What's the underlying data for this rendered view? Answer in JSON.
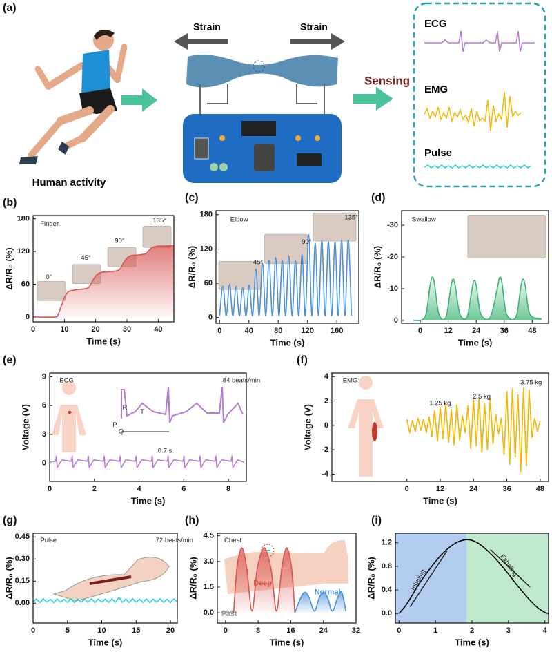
{
  "schematic": {
    "panel_label": "(a)",
    "strain_left": "Strain",
    "strain_right": "Strain",
    "sensing": "Sensing",
    "signals": [
      "ECG",
      "EMG",
      "Pulse"
    ],
    "caption": "Human activity"
  },
  "chart_data": [
    {
      "type": "line",
      "panel_label": "(b)",
      "x_label": "Time (s)",
      "y_label": "ΔR/R₀ (%)",
      "xlim": [
        0,
        45
      ],
      "xticks": [
        0,
        10,
        20,
        30,
        40
      ],
      "ylim": [
        -9,
        186
      ],
      "yticks": [
        0,
        60,
        120,
        180
      ],
      "annotations": [
        "Finger",
        "0°",
        "45°",
        "90°",
        "135°"
      ],
      "series": [
        {
          "color": "#d9534f",
          "area": true,
          "smooth": true,
          "x": [
            0,
            7,
            8,
            9,
            10,
            11,
            12,
            14,
            17,
            18,
            19,
            20,
            21,
            22,
            24,
            27,
            28,
            29,
            30,
            31,
            32,
            34,
            36,
            37,
            38,
            39,
            40,
            42,
            45
          ],
          "values": [
            0,
            0,
            5,
            20,
            35,
            45,
            48,
            50,
            52,
            56,
            66,
            75,
            80,
            82,
            83,
            85,
            90,
            100,
            108,
            112,
            113,
            114,
            116,
            122,
            127,
            129,
            130,
            130,
            131
          ]
        }
      ]
    },
    {
      "type": "line",
      "panel_label": "(c)",
      "x_label": "Time (s)",
      "y_label": "ΔR/R₀ (%)",
      "xlim": [
        -5,
        190
      ],
      "xticks": [
        0,
        40,
        80,
        120,
        160
      ],
      "ylim": [
        -10,
        187
      ],
      "yticks": [
        0,
        60,
        120,
        180
      ],
      "annotations": [
        "Elbow",
        "45°",
        "90°",
        "135°"
      ],
      "series": [
        {
          "color": "#4a90d9",
          "smooth": true,
          "x": [
            0,
            4.5,
            9,
            13.5,
            18,
            22.5,
            27,
            31.5,
            36,
            40.5,
            45,
            49.5,
            54,
            58.5,
            63,
            67.5,
            72,
            76.5,
            81,
            85.5,
            90,
            94.5,
            99,
            103.5,
            108,
            112.5,
            117,
            121.5,
            126,
            130.5,
            135,
            139.5,
            144,
            148.5,
            153,
            157.5,
            162,
            166.5,
            171,
            175.5,
            180
          ],
          "values": [
            3,
            55,
            3,
            58,
            3,
            55,
            3,
            52,
            3,
            57,
            3,
            85,
            3,
            95,
            3,
            100,
            3,
            105,
            3,
            100,
            3,
            108,
            3,
            100,
            3,
            110,
            3,
            145,
            3,
            130,
            3,
            135,
            3,
            133,
            3,
            132,
            3,
            135,
            3,
            136,
            3
          ]
        }
      ]
    },
    {
      "type": "line",
      "panel_label": "(d)",
      "x_label": "Time (s)",
      "y_label": "ΔR/R₀ (%)",
      "xlim": [
        -8,
        55
      ],
      "xticks": [
        0,
        12,
        24,
        36,
        48
      ],
      "ylim": [
        0.9,
        -34.6
      ],
      "yticks": [
        0,
        -10,
        -20,
        -30
      ],
      "annotations": [
        "Swallow"
      ],
      "series": [
        {
          "color": "#3cb371",
          "area": true,
          "smooth": true,
          "x": [
            -3,
            2,
            4,
            5,
            6,
            8,
            11,
            13,
            14,
            15,
            17,
            20,
            22,
            23,
            24,
            26,
            30,
            33,
            34,
            35,
            37,
            41,
            43,
            44,
            45,
            47,
            52
          ],
          "values": [
            0,
            -1,
            -10,
            -13.5,
            -12,
            -2,
            -1,
            -10,
            -13,
            -11,
            -2,
            -1,
            -9,
            -12.5,
            -11,
            -2,
            -1,
            -10,
            -13.5,
            -12,
            -2,
            -1,
            -10,
            -13,
            -11,
            -2,
            -0.5
          ]
        }
      ]
    },
    {
      "type": "line",
      "panel_label": "(e)",
      "x_label": "Time (s)",
      "y_label": "Voltage (V)",
      "xlim": [
        0,
        8.8
      ],
      "xticks": [
        0,
        2,
        4,
        6,
        8
      ],
      "ylim": [
        -1.9,
        9.4
      ],
      "yticks": [
        0,
        3,
        6,
        9
      ],
      "annotations": [
        "ECG",
        "84 beats/min",
        "R",
        "T",
        "P",
        "Q",
        "0.7 s"
      ],
      "series": [
        {
          "color": "#b57bd0",
          "x": [
            0,
            0.26,
            0.3,
            0.34,
            0.55,
            0.97,
            1.01,
            1.05,
            1.26,
            1.69,
            1.73,
            1.77,
            1.98,
            2.4,
            2.44,
            2.48,
            2.69,
            3.12,
            3.16,
            3.2,
            3.41,
            3.83,
            3.87,
            3.91,
            4.12,
            4.55,
            4.59,
            4.63,
            4.84,
            5.26,
            5.3,
            5.34,
            5.55,
            5.97,
            6.01,
            6.05,
            6.26,
            6.69,
            6.73,
            6.77,
            6.98,
            7.4,
            7.44,
            7.48,
            7.69,
            8.12,
            8.16,
            8.2,
            8.41,
            8.7
          ],
          "values": [
            0.1,
            0.2,
            0.75,
            -0.45,
            0.35,
            0.2,
            0.75,
            -0.45,
            0.35,
            0.2,
            0.75,
            -0.45,
            0.35,
            0.2,
            0.75,
            -0.45,
            0.35,
            0.2,
            0.75,
            -0.45,
            0.35,
            0.2,
            0.75,
            -0.45,
            0.35,
            0.2,
            0.75,
            -0.45,
            0.35,
            0.2,
            0.75,
            -0.45,
            0.35,
            0.2,
            0.75,
            -0.45,
            0.35,
            0.2,
            0.75,
            -0.45,
            0.35,
            0.2,
            0.75,
            -0.45,
            0.35,
            0.2,
            0.75,
            -0.45,
            0.35,
            0.1
          ]
        }
      ]
    },
    {
      "type": "line",
      "panel_label": "(f)",
      "x_label": "Time (s)",
      "y_label": "Voltage (V)",
      "xlim": [
        -27,
        51
      ],
      "xticks": [
        0,
        12,
        24,
        36,
        48
      ],
      "ylim": [
        -4.6,
        4.3
      ],
      "yticks": [
        -4,
        -2,
        0,
        2,
        4
      ],
      "annotations": [
        "EMG",
        "1.25 kg",
        "2.5 kg",
        "3.75 kg"
      ],
      "series": [
        {
          "color": "#f2b705",
          "x": [
            0,
            1,
            2,
            3,
            4,
            5,
            6,
            7,
            8,
            9,
            10,
            11,
            12,
            13,
            14,
            15,
            16,
            17,
            18,
            19,
            20,
            21,
            22,
            23,
            24,
            25,
            26,
            27,
            28,
            29,
            30,
            31,
            32,
            33,
            34,
            35,
            36,
            37,
            38,
            39,
            40,
            41,
            42,
            43,
            44,
            45,
            46,
            47,
            48
          ],
          "values": [
            0.5,
            -0.6,
            0.4,
            -0.5,
            0.6,
            -0.4,
            0.5,
            -0.6,
            0.7,
            -0.9,
            1.2,
            -1.3,
            1.5,
            -1.1,
            1.8,
            -1.4,
            1.3,
            -1.6,
            1.7,
            -1.2,
            0.8,
            -0.6,
            1.6,
            -1.9,
            2.1,
            -1.7,
            2.3,
            -2.2,
            1.8,
            -2.0,
            2.2,
            -1.5,
            0.9,
            -0.7,
            0.6,
            -2.4,
            2.8,
            -3.2,
            3.0,
            -2.6,
            2.5,
            -3.8,
            3.1,
            -3.3,
            2.9,
            -1.0,
            0.6,
            -0.5,
            0.4
          ]
        }
      ]
    },
    {
      "type": "line",
      "panel_label": "(g)",
      "x_label": "Time (s)",
      "y_label": "ΔR/R₀ (%)",
      "xlim": [
        0,
        21
      ],
      "xticks": [
        0,
        5,
        10,
        15,
        20
      ],
      "ylim": [
        -0.135,
        0.475
      ],
      "yticks": [
        {
          "value": 0,
          "label": "0.00"
        },
        0.15,
        {
          "value": 0.3,
          "label": "0.30"
        },
        0.45
      ],
      "annotations": [
        "Pulse",
        "72 beats/min"
      ],
      "series": [
        {
          "color": "#22d3d3",
          "x": [
            0,
            0.5,
            1,
            1.5,
            2,
            2.5,
            3,
            3.5,
            4,
            4.5,
            5,
            5.5,
            6,
            6.5,
            7,
            7.5,
            8,
            8.5,
            9,
            9.5,
            10,
            10.5,
            11,
            11.5,
            12,
            12.5,
            13,
            13.5,
            14,
            14.5,
            15,
            15.5,
            16,
            16.5,
            17,
            17.5,
            18,
            18.5,
            19,
            19.5,
            20,
            20.5,
            21
          ],
          "values": [
            0.01,
            0.028,
            0.005,
            0.03,
            0.006,
            0.027,
            0.004,
            0.029,
            0.006,
            0.026,
            0.005,
            0.03,
            0.004,
            0.028,
            0.006,
            0.027,
            0.005,
            0.03,
            0.004,
            0.029,
            0.006,
            0.028,
            0.005,
            0.03,
            0.006,
            0.04,
            0.005,
            0.028,
            0.004,
            0.03,
            0.006,
            0.027,
            0.005,
            0.029,
            0.004,
            0.028,
            0.006,
            0.03,
            0.005,
            0.027,
            0.004,
            0.029,
            0.01
          ]
        }
      ]
    },
    {
      "type": "line",
      "panel_label": "(h)",
      "x_label": "Time (s)",
      "y_label": "ΔR/R₀ (%)",
      "xlim": [
        -2,
        32
      ],
      "xticks": [
        0,
        8,
        16,
        24,
        32
      ],
      "ylim": [
        -0.6,
        4.65
      ],
      "yticks": [
        {
          "value": 0,
          "label": "0.0"
        },
        1.5,
        {
          "value": 3,
          "label": "3.0"
        },
        4.5
      ],
      "annotations": [
        "Chest"
      ],
      "series": [
        {
          "name": "Fast",
          "color": "#999999",
          "area": true,
          "smooth": true,
          "x": [
            -1,
            -0.5,
            0,
            0.5,
            1,
            1.5,
            2
          ],
          "values": [
            0,
            0.12,
            0,
            0.12,
            0,
            0.12,
            0
          ]
        },
        {
          "name": "Deep",
          "color": "#d9534f",
          "area": true,
          "smooth": true,
          "x": [
            2,
            2.8,
            4,
            5.2,
            6.5,
            7.8,
            9.5,
            11.2,
            12.5,
            13.8,
            15,
            16.2,
            17
          ],
          "values": [
            0,
            2.6,
            3.8,
            2.6,
            0.1,
            2.6,
            3.8,
            2.5,
            0.1,
            2.6,
            3.8,
            2.6,
            0
          ]
        },
        {
          "name": "Normal",
          "color": "#4a90d9",
          "area": true,
          "smooth": true,
          "x": [
            17,
            18.5,
            19.5,
            20.5,
            21.8,
            23,
            24,
            25,
            26.2,
            27.5,
            28.5,
            29.5
          ],
          "values": [
            0,
            0.9,
            1.2,
            0.9,
            0.1,
            0.9,
            1.2,
            0.9,
            0.1,
            0.9,
            1.2,
            0.1
          ]
        }
      ]
    },
    {
      "type": "line",
      "panel_label": "(i)",
      "x_label": "Time (s)",
      "y_label": "ΔR/R₀ (%)",
      "xlim": [
        -0.1,
        4.1
      ],
      "xticks": [
        0,
        1,
        2,
        3,
        4
      ],
      "ylim": [
        -0.16,
        1.36
      ],
      "yticks": [
        {
          "value": 0,
          "label": "0.0"
        },
        0.4,
        0.8,
        1.2
      ],
      "regions": [
        {
          "label": "Inhaling",
          "color": "#b3cdf0",
          "x": [
            -0.1,
            1.85
          ]
        },
        {
          "label": "Exhaling",
          "color": "#bfe8cf",
          "x": [
            1.85,
            4.1
          ]
        }
      ],
      "series": [
        {
          "color": "#000000",
          "smooth": true,
          "x": [
            0,
            0.2,
            0.4,
            0.6,
            0.8,
            1,
            1.2,
            1.4,
            1.6,
            1.8,
            1.9,
            2,
            2.2,
            2.4,
            2.6,
            2.8,
            3,
            3.2,
            3.4,
            3.6,
            3.8,
            4,
            4.1
          ],
          "values": [
            0,
            0.15,
            0.35,
            0.55,
            0.72,
            0.88,
            1.02,
            1.13,
            1.21,
            1.25,
            1.25,
            1.24,
            1.18,
            1.08,
            0.96,
            0.82,
            0.67,
            0.51,
            0.36,
            0.22,
            0.1,
            0.02,
            0
          ]
        }
      ]
    }
  ]
}
